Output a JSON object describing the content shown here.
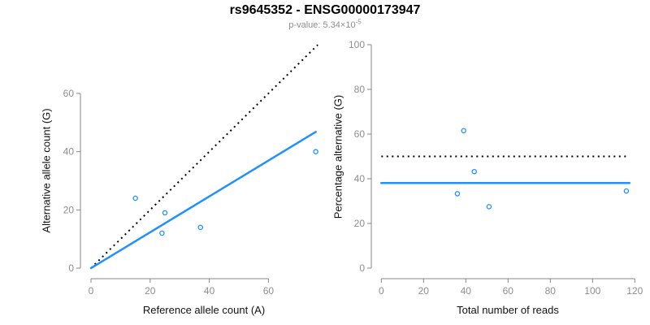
{
  "header": {
    "title": "rs9645352 - ENSG00000173947",
    "pvalue_text": "p-value: 5.34×10",
    "pvalue_exponent": "-5"
  },
  "colors": {
    "accent_blue": "#1E90FF",
    "axis_line": "#878787",
    "tick_label": "#8E8E8E",
    "dotted_line": "#000000",
    "title": "#000000",
    "subtitle": "#8E8E8E",
    "background": "#FFFFFF"
  },
  "chart_data": [
    {
      "type": "scatter",
      "panel": "allele-counts",
      "xlabel": "Reference allele count (A)",
      "ylabel": "Alternative allele count (G)",
      "xlim": [
        0,
        76.7
      ],
      "ylim": [
        0,
        76.7
      ],
      "xticks": [
        0,
        20,
        40,
        60
      ],
      "yticks": [
        0,
        20,
        40,
        60
      ],
      "grid": false,
      "legend": false,
      "points": [
        [
          15,
          24
        ],
        [
          25,
          19
        ],
        [
          24,
          12
        ],
        [
          37,
          14
        ],
        [
          76,
          40
        ]
      ],
      "lines": [
        {
          "name": "identity-line",
          "style": "dotted",
          "x1": 0,
          "y1": 0,
          "x2": 76.7,
          "y2": 76.7
        },
        {
          "name": "fit-line",
          "style": "solid",
          "x1": 0,
          "y1": 0,
          "x2": 76,
          "y2": 46.8
        }
      ]
    },
    {
      "type": "scatter",
      "panel": "percentage-vs-coverage",
      "xlabel": "Total number of reads",
      "ylabel": "Percentage alternative (G)",
      "xlim": [
        0,
        120
      ],
      "ylim": [
        0,
        100
      ],
      "xticks": [
        0,
        20,
        40,
        60,
        80,
        100,
        120
      ],
      "yticks": [
        0,
        20,
        40,
        60,
        80,
        100
      ],
      "grid": false,
      "legend": false,
      "points": [
        [
          39,
          61.5
        ],
        [
          44,
          43.2
        ],
        [
          36,
          33.3
        ],
        [
          51,
          27.5
        ],
        [
          116,
          34.5
        ]
      ],
      "lines": [
        {
          "name": "reference-50pct-line",
          "style": "dotted",
          "x1": 0,
          "y1": 50,
          "x2": 116,
          "y2": 50
        },
        {
          "name": "mean-percentage-line",
          "style": "solid",
          "x1": 0,
          "y1": 38.1,
          "x2": 117.5,
          "y2": 38.1
        }
      ]
    }
  ]
}
